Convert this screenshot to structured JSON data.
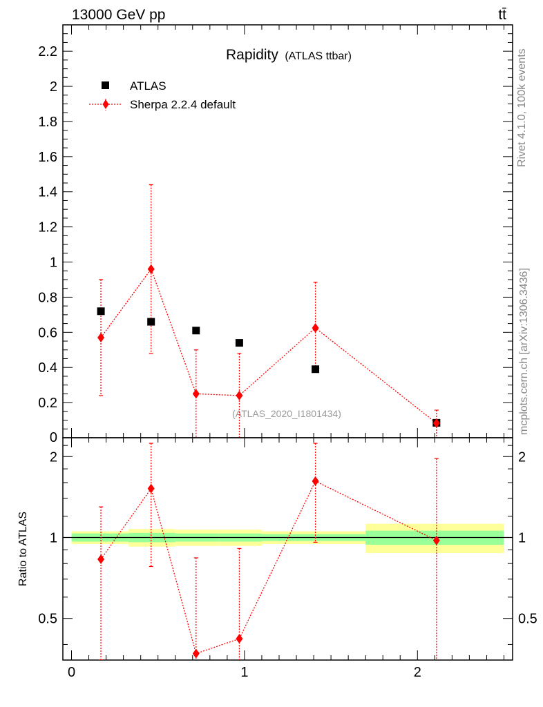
{
  "header": {
    "energy_label": "13000 GeV pp",
    "process_label": "tt̄"
  },
  "side_labels": {
    "rivet": "Rivet 4.1.0,  100k events",
    "mcplots": "mcplots.cern.ch [arXiv:1306.3436]"
  },
  "chart_data": [
    {
      "type": "scatter",
      "panel": "main",
      "title": "Rapidity",
      "title_sub": "(ATLAS ttbar)",
      "watermark": "(ATLAS_2020_I1801434)",
      "xlabel": "",
      "ylabel": "",
      "xlim": [
        -0.05,
        2.55
      ],
      "ylim": [
        0,
        2.35
      ],
      "y_ticks": [
        0.2,
        0.4,
        0.6,
        0.8,
        1,
        1.2,
        1.4,
        1.6,
        1.8,
        2,
        2.2
      ],
      "y_tick_labels": [
        "0.2",
        "0.4",
        "0.6",
        "0.8",
        "1",
        "1.2",
        "1.4",
        "1.6",
        "1.8",
        "2",
        "2.2"
      ],
      "y_bottom_label": "0",
      "legend_position": "top-left",
      "series": [
        {
          "name": "ATLAS",
          "color": "#000000",
          "marker": "square",
          "x": [
            0.17,
            0.46,
            0.72,
            0.97,
            1.41,
            2.11
          ],
          "y": [
            0.72,
            0.66,
            0.61,
            0.54,
            0.39,
            0.085
          ],
          "yerr_low": [
            0,
            0,
            0,
            0,
            0,
            0
          ],
          "yerr_high": [
            0,
            0,
            0,
            0,
            0,
            0
          ]
        },
        {
          "name": "Sherpa 2.2.4 default",
          "color": "#ff0000",
          "marker": "diamond",
          "x": [
            0.17,
            0.46,
            0.72,
            0.97,
            1.41,
            2.11
          ],
          "y": [
            0.57,
            0.96,
            0.25,
            0.24,
            0.625,
            0.083
          ],
          "yerr_low": [
            0.33,
            0.48,
            0.25,
            0.24,
            0.25,
            0.083
          ],
          "yerr_high": [
            0.33,
            0.48,
            0.25,
            0.24,
            0.26,
            0.074
          ]
        }
      ]
    },
    {
      "type": "scatter",
      "panel": "ratio",
      "ylabel": "Ratio to ATLAS",
      "xlim": [
        -0.05,
        2.55
      ],
      "ylim": [
        0.35,
        2.35
      ],
      "log_y": true,
      "x_ticks": [
        0,
        1,
        2
      ],
      "x_tick_labels": [
        "0",
        "1",
        "2"
      ],
      "y_ticks": [
        0.5,
        1,
        2
      ],
      "y_tick_labels": [
        "0.5",
        "1",
        "2"
      ],
      "reference_line": 1,
      "bands": {
        "edges": [
          0.0,
          0.33,
          0.6,
          0.85,
          1.1,
          1.7,
          2.5
        ],
        "inner_low": [
          0.965,
          0.96,
          0.965,
          0.965,
          0.97,
          0.94
        ],
        "inner_high": [
          1.035,
          1.04,
          1.035,
          1.035,
          1.03,
          1.06
        ],
        "outer_low": [
          0.945,
          0.925,
          0.93,
          0.93,
          0.945,
          0.875
        ],
        "outer_high": [
          1.055,
          1.075,
          1.07,
          1.07,
          1.055,
          1.125
        ],
        "inner_color": "#99ff99",
        "outer_color": "#ffff99"
      },
      "series": [
        {
          "name": "Sherpa 2.2.4 default",
          "color": "#ff0000",
          "marker": "diamond",
          "x": [
            0.17,
            0.46,
            0.72,
            0.97,
            1.41,
            2.11
          ],
          "y": [
            0.83,
            1.52,
            0.37,
            0.42,
            1.62,
            0.975
          ],
          "yerr_low": [
            0.48,
            0.74,
            0.37,
            0.42,
            0.66,
            0.975
          ],
          "yerr_high": [
            0.47,
            0.72,
            0.47,
            0.49,
            0.62,
            0.99
          ]
        }
      ]
    }
  ]
}
